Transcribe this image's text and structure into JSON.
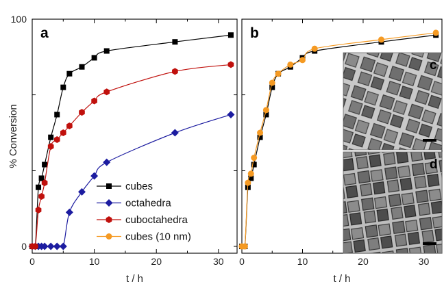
{
  "chart_data": [
    {
      "type": "line",
      "panel_label": "a",
      "ylabel": "% Conversion",
      "xlabel": "t / h",
      "xlim": [
        0,
        33
      ],
      "ylim": [
        -3,
        100
      ],
      "x_ticks": [
        0,
        10,
        20,
        30
      ],
      "y_ticks": [
        0,
        100
      ],
      "y_tick_labels": [
        "0",
        "100"
      ],
      "series": [
        {
          "name": "cubes",
          "color": "#000000",
          "marker": "square",
          "x": [
            0,
            0.5,
            1,
            1.5,
            2,
            3,
            4,
            5,
            6,
            8,
            10,
            12,
            23,
            32
          ],
          "y": [
            0,
            0,
            26,
            30,
            36,
            48,
            58,
            70,
            76,
            79,
            83,
            86,
            90,
            93
          ]
        },
        {
          "name": "octahedra",
          "color": "#1c1ca0",
          "marker": "diamond",
          "x": [
            0,
            0.5,
            1,
            1.5,
            2,
            3,
            4,
            5,
            6,
            8,
            10,
            12,
            23,
            32
          ],
          "y": [
            0,
            0,
            0,
            0,
            0,
            0,
            0,
            0,
            15,
            24,
            31,
            37,
            50,
            58
          ]
        },
        {
          "name": "cuboctahedra",
          "color": "#c0100c",
          "marker": "hexagon",
          "x": [
            0,
            0.5,
            1,
            1.5,
            2,
            3,
            4,
            5,
            6,
            8,
            10,
            12,
            23,
            32
          ],
          "y": [
            0,
            0,
            16,
            22,
            28,
            44,
            47,
            50,
            53,
            59,
            64,
            68,
            77,
            80
          ]
        }
      ],
      "legend": [
        "cubes",
        "octahedra",
        "cuboctahedra",
        "cubes (10 nm)"
      ],
      "legend_position": "bottom-right"
    },
    {
      "type": "line",
      "panel_label": "b",
      "xlabel": "t / h",
      "xlim": [
        0,
        33
      ],
      "ylim": [
        -3,
        100
      ],
      "x_ticks": [
        0,
        10,
        20,
        30
      ],
      "series": [
        {
          "name": "cubes",
          "color": "#000000",
          "marker": "square",
          "x": [
            0,
            0.5,
            1,
            1.5,
            2,
            3,
            4,
            5,
            6,
            8,
            10,
            12,
            23,
            32
          ],
          "y": [
            0,
            0,
            26,
            30,
            36,
            48,
            58,
            70,
            76,
            79,
            83,
            86,
            90,
            93
          ]
        },
        {
          "name": "cubes (10 nm)",
          "color": "#f59a23",
          "marker": "circle",
          "x": [
            0,
            0.5,
            1,
            1.5,
            2,
            3,
            4,
            5,
            6,
            8,
            10,
            12,
            23,
            32
          ],
          "y": [
            0,
            0,
            28,
            32,
            39,
            50,
            60,
            72,
            76,
            80,
            82,
            87,
            91,
            94
          ]
        }
      ],
      "insets": [
        {
          "label": "c",
          "image": "tem-micrograph-cubes"
        },
        {
          "label": "d",
          "image": "tem-micrograph-cubes-10nm"
        }
      ]
    }
  ]
}
